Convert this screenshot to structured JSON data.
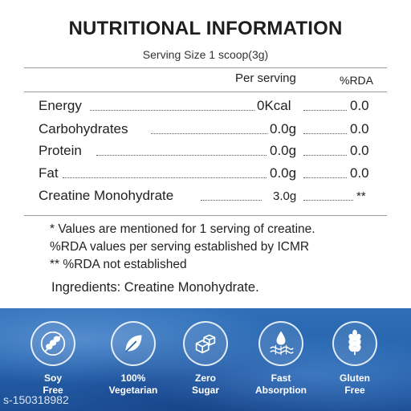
{
  "title": "NUTRITIONAL INFORMATION",
  "serving_size": "Serving Size 1 scoop(3g)",
  "headers": {
    "per_serving": "Per serving",
    "rda": "%RDA"
  },
  "rows": [
    {
      "label": "Energy",
      "value": "0Kcal",
      "rda": "0.0"
    },
    {
      "label": "Carbohydrates",
      "value": "0.0g",
      "rda": "0.0"
    },
    {
      "label": "Protein",
      "value": "0.0g",
      "rda": "0.0"
    },
    {
      "label": "Fat",
      "value": "0.0g",
      "rda": "0.0"
    },
    {
      "label": "Creatine Monohydrate",
      "value": "3.0g",
      "rda": "**"
    }
  ],
  "notes": [
    "* Values are mentioned for 1 serving of creatine.",
    "%RDA values per serving established by ICMR",
    "** %RDA not established"
  ],
  "ingredients": "Ingredients: Creatine Monohydrate.",
  "badges": [
    {
      "line1": "Soy",
      "line2": "Free",
      "icon": "soy-free-icon"
    },
    {
      "line1": "100%",
      "line2": "Vegetarian",
      "icon": "leaf-icon"
    },
    {
      "line1": "Zero",
      "line2": "Sugar",
      "icon": "sugar-cubes-icon"
    },
    {
      "line1": "Fast",
      "line2": "Absorption",
      "icon": "absorption-icon"
    },
    {
      "line1": "Gluten",
      "line2": "Free",
      "icon": "wheat-icon"
    }
  ],
  "watermark": "s-150318982",
  "colors": {
    "banner": "#2563ad",
    "text": "#222222",
    "badge_text": "#ffffff"
  }
}
